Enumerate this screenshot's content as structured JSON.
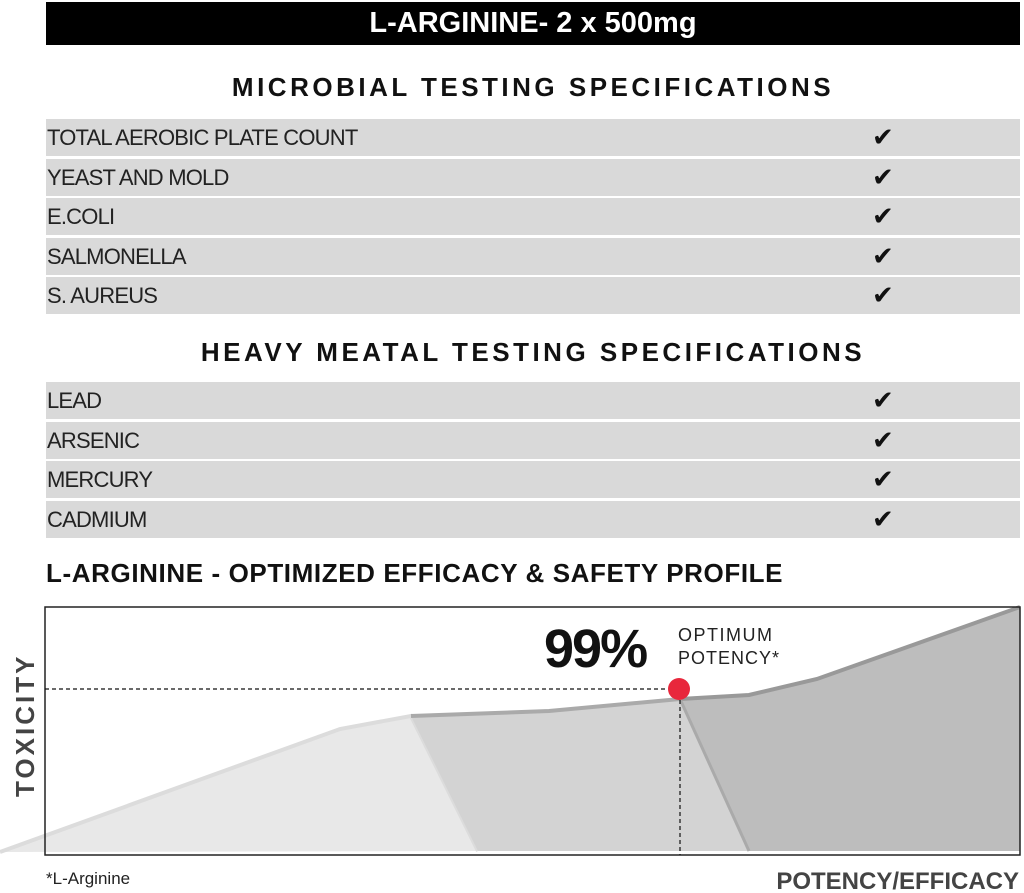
{
  "title": "L-ARGININE- 2 x 500mg",
  "microbial": {
    "heading": "MICROBIAL TESTING SPECIFICATIONS",
    "items": [
      {
        "label": "TOTAL AEROBIC PLATE COUNT",
        "check": "✔"
      },
      {
        "label": "YEAST AND MOLD",
        "check": "✔"
      },
      {
        "label": "E.COLI",
        "check": "✔"
      },
      {
        "label": "SALMONELLA",
        "check": "✔"
      },
      {
        "label": "S. AUREUS",
        "check": "✔"
      }
    ]
  },
  "heavy_metal": {
    "heading": "HEAVY MEATAL TESTING SPECIFICATIONS",
    "items": [
      {
        "label": "LEAD",
        "check": "✔"
      },
      {
        "label": "ARSENIC",
        "check": "✔"
      },
      {
        "label": "MERCURY",
        "check": "✔"
      },
      {
        "label": "CADMIUM",
        "check": "✔"
      }
    ]
  },
  "profile": {
    "heading": "L-ARGININE - OPTIMIZED EFFICACY & SAFETY PROFILE",
    "percent": "99%",
    "callout_line1": "OPTIMUM",
    "callout_line2": "POTENCY*",
    "y_label": "TOXICITY",
    "x_label": "POTENCY/EFFICACY",
    "footnote": "*L-Arginine",
    "colors": {
      "light": "#e8e8e8",
      "medium": "#d3d3d3",
      "dark": "#bdbdbd",
      "marker": "#e8273c"
    }
  }
}
